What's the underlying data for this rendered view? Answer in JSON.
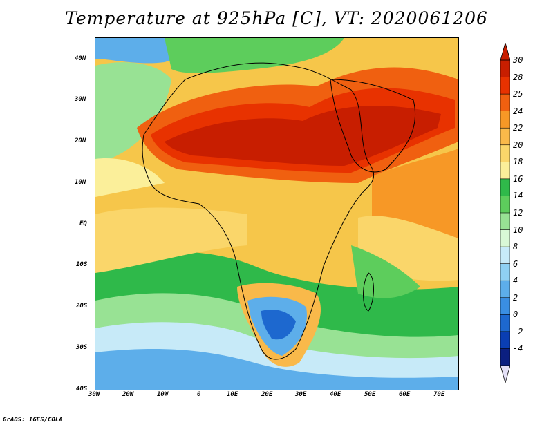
{
  "map": {
    "title": "Temperature at 925hPa [C], VT: 2020061206",
    "credit": "GrADS: IGES/COLA",
    "x_ticks": [
      "30W",
      "20W",
      "10W",
      "0",
      "10E",
      "20E",
      "30E",
      "40E",
      "50E",
      "60E",
      "70E"
    ],
    "y_ticks": [
      "40N",
      "30N",
      "20N",
      "10N",
      "EQ",
      "10S",
      "20S",
      "30S",
      "40S"
    ],
    "colorbar": {
      "labels": [
        "30",
        "28",
        "25",
        "24",
        "22",
        "20",
        "18",
        "16",
        "14",
        "12",
        "10",
        "8",
        "6",
        "4",
        "2",
        "0",
        "-2",
        "-4"
      ],
      "colors": [
        "#c81e00",
        "#e83200",
        "#f06010",
        "#f79826",
        "#f9b94a",
        "#fad66a",
        "#fbef9a",
        "#2fb94a",
        "#5dcd5c",
        "#98e294",
        "#d9f8d6",
        "#c7eaf8",
        "#8fd0f3",
        "#5daeea",
        "#3a8ee2",
        "#1d68cf",
        "#0a3eb3",
        "#0b1f80"
      ],
      "over_color": "#c81e00",
      "under_color": "#e4e0f6"
    }
  }
}
